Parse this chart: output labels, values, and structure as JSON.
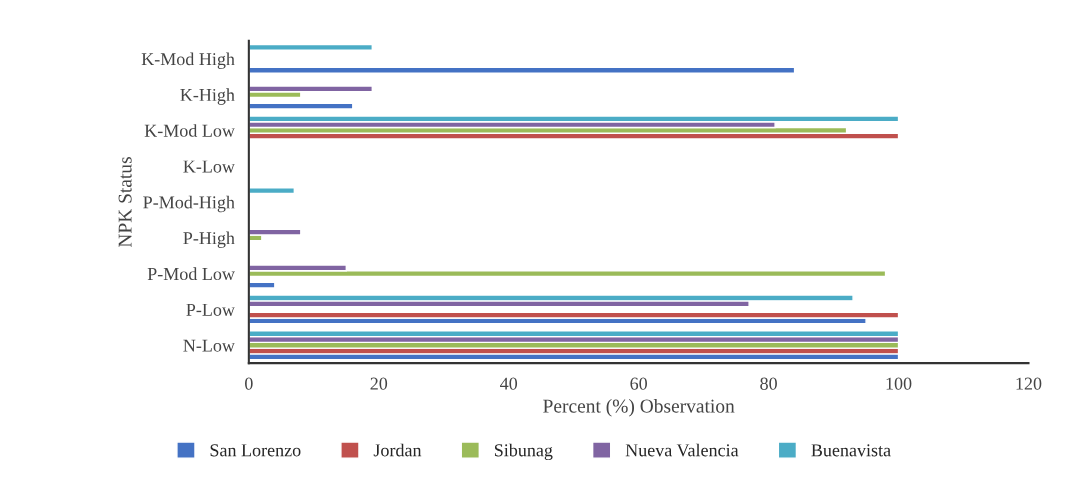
{
  "chart_data": {
    "type": "bar",
    "orientation": "horizontal",
    "xlabel": "Percent (%) Observation",
    "ylabel": "NPK Status",
    "categories": [
      "K-Mod High",
      "K-High",
      "K-Mod Low",
      "K-Low",
      "P-Mod-High",
      "P-High",
      "P-Mod Low",
      "P-Low",
      "N-Low"
    ],
    "series": [
      {
        "name": "San Lorenzo",
        "color": "#4472c4",
        "values": [
          84,
          16,
          null,
          null,
          null,
          null,
          4,
          95,
          100
        ]
      },
      {
        "name": "Jordan",
        "color": "#c0504d",
        "values": [
          null,
          null,
          100,
          null,
          null,
          null,
          null,
          100,
          100
        ]
      },
      {
        "name": "Sibunag",
        "color": "#9bbb59",
        "values": [
          null,
          8,
          92,
          null,
          null,
          2,
          98,
          null,
          100
        ]
      },
      {
        "name": "Nueva Valencia",
        "color": "#8064a2",
        "values": [
          null,
          19,
          81,
          null,
          null,
          8,
          15,
          77,
          100
        ]
      },
      {
        "name": "Buenavista",
        "color": "#4bacc6",
        "values": [
          19,
          null,
          100,
          null,
          7,
          null,
          null,
          93,
          100
        ]
      }
    ],
    "xlim": [
      0,
      120
    ],
    "xticks": [
      0,
      20,
      40,
      60,
      80,
      100,
      120
    ],
    "grid": false,
    "legend": "bottom"
  }
}
